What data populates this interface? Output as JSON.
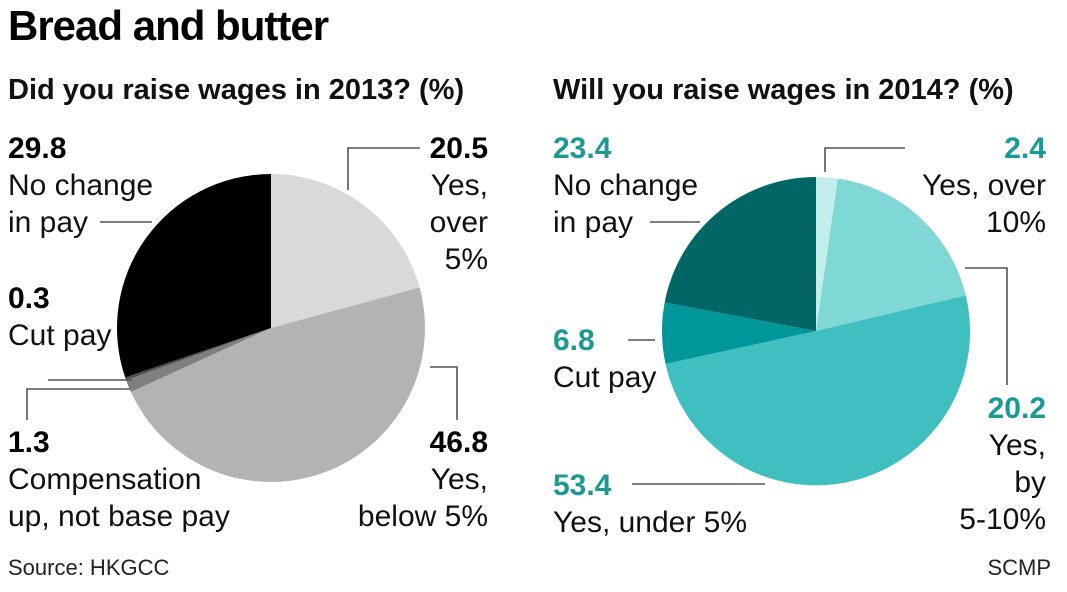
{
  "title": "Bread and butter",
  "source": "Source: HKGCC",
  "credit": "SCMP",
  "chart_data": [
    {
      "type": "pie",
      "title": "Did you raise wages in 2013? (%)",
      "value_color": "#000000",
      "slices": [
        {
          "value": 20.5,
          "label_lines": [
            "Yes,",
            "over",
            "5%"
          ],
          "color": "#d9d9d9"
        },
        {
          "value": 46.8,
          "label_lines": [
            "Yes,",
            "below 5%"
          ],
          "color": "#b3b3b3"
        },
        {
          "value": 1.3,
          "label_lines": [
            "Compensation",
            "up, not base pay"
          ],
          "color": "#7f7f7f"
        },
        {
          "value": 0.3,
          "label_lines": [
            "Cut pay"
          ],
          "color": "#4d4d4d"
        },
        {
          "value": 29.8,
          "label_lines": [
            "No change",
            "in pay"
          ],
          "color": "#000000"
        }
      ]
    },
    {
      "type": "pie",
      "title": "Will you raise wages in 2014? (%)",
      "value_color": "#1a9a96",
      "slices": [
        {
          "value": 2.4,
          "label_lines": [
            "Yes, over",
            "10%"
          ],
          "color": "#c4eeec"
        },
        {
          "value": 20.2,
          "label_lines": [
            "Yes,",
            "by",
            "5-10%"
          ],
          "color": "#80d8d6"
        },
        {
          "value": 53.4,
          "label_lines": [
            "Yes, under 5%"
          ],
          "color": "#40bfc1"
        },
        {
          "value": 6.8,
          "label_lines": [
            "Cut pay"
          ],
          "color": "#00979a"
        },
        {
          "value": 23.4,
          "label_lines": [
            "No change",
            "in pay"
          ],
          "color": "#006666"
        }
      ]
    }
  ]
}
